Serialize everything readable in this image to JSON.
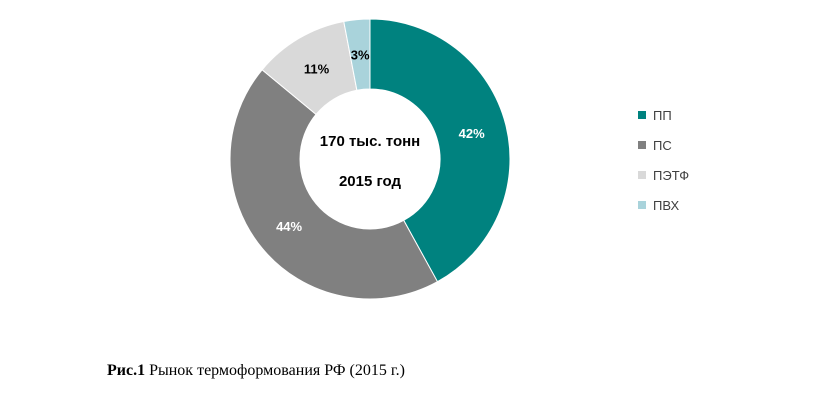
{
  "chart_data": {
    "type": "pie",
    "variant": "donut",
    "center_text": [
      "170 тыс. тонн",
      "2015 год"
    ],
    "categories": [
      "ПП",
      "ПС",
      "ПЭТФ",
      "ПВХ"
    ],
    "values": [
      42,
      44,
      11,
      3
    ],
    "value_labels": [
      "42%",
      "44%",
      "11%",
      "3%"
    ],
    "colors": [
      "#00827f",
      "#808080",
      "#d9d9d9",
      "#a9d3db"
    ],
    "label_colors": [
      "#ffffff",
      "#ffffff",
      "#000000",
      "#000000"
    ],
    "legend_position": "right"
  },
  "caption": {
    "prefix": "Рис.1",
    "text": " Рынок термоформования РФ (2015 г.)"
  }
}
